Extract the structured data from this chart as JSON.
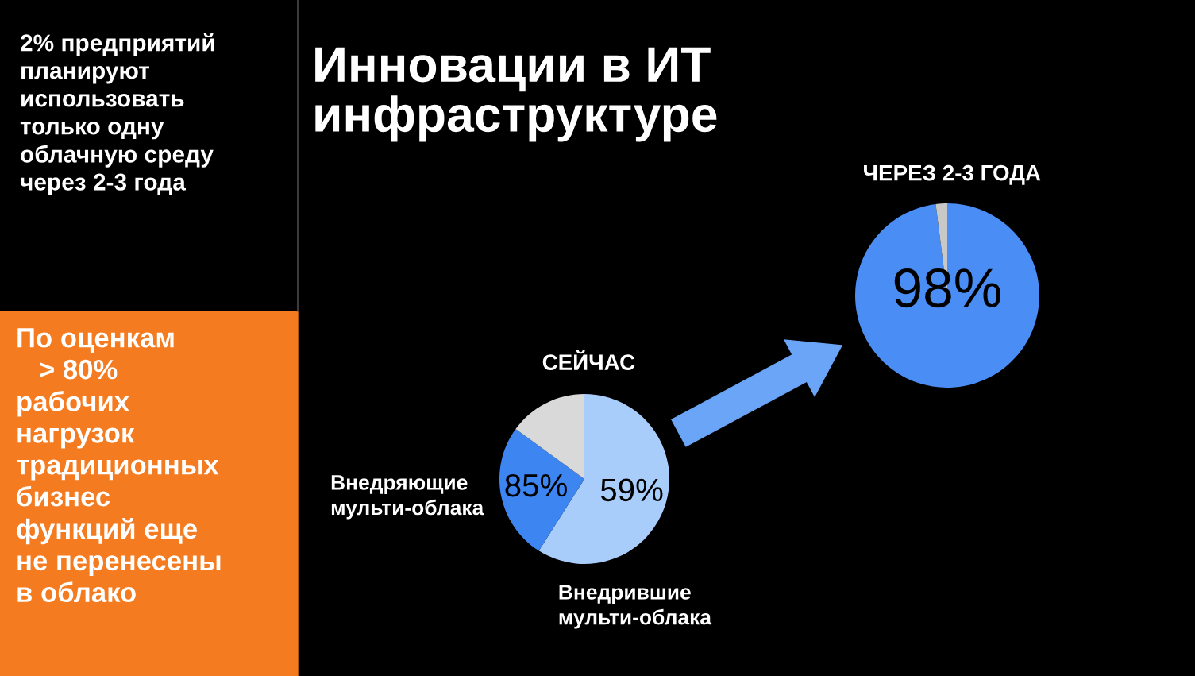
{
  "chart_data": [
    {
      "type": "other",
      "title": "Инновации в ИТ\nинфраструктуре",
      "annotations": [
        "2% предприятий\nпланируют\nиспользовать\nтолько одну\nоблачную среду\nчерез 2-3 года",
        "По оценкам\n   > 80%\nрабочих\nнагрузок\nтрадиционных\nбизнес\nфункций еще\nне перенесены\nв облако"
      ]
    },
    {
      "type": "pie",
      "title": "СЕЙЧАС",
      "categories": [
        "Внедрившие\nмульти-облака",
        "Внедряющие\nмульти-облака",
        null
      ],
      "values": [
        59,
        26,
        15
      ],
      "colors": [
        "#a9cdfb",
        "#3d85f0",
        "#d9d9d9"
      ],
      "value_labels": [
        "59%",
        null,
        null
      ],
      "annotations": [
        "85%"
      ]
    },
    {
      "type": "pie",
      "title": "ЧЕРЕЗ 2-3 ГОДА",
      "categories": [
        null,
        null
      ],
      "values": [
        98,
        2
      ],
      "colors": [
        "#4a8ef5",
        "#c8c8c8"
      ],
      "value_labels": [
        "98%",
        null
      ]
    }
  ]
}
